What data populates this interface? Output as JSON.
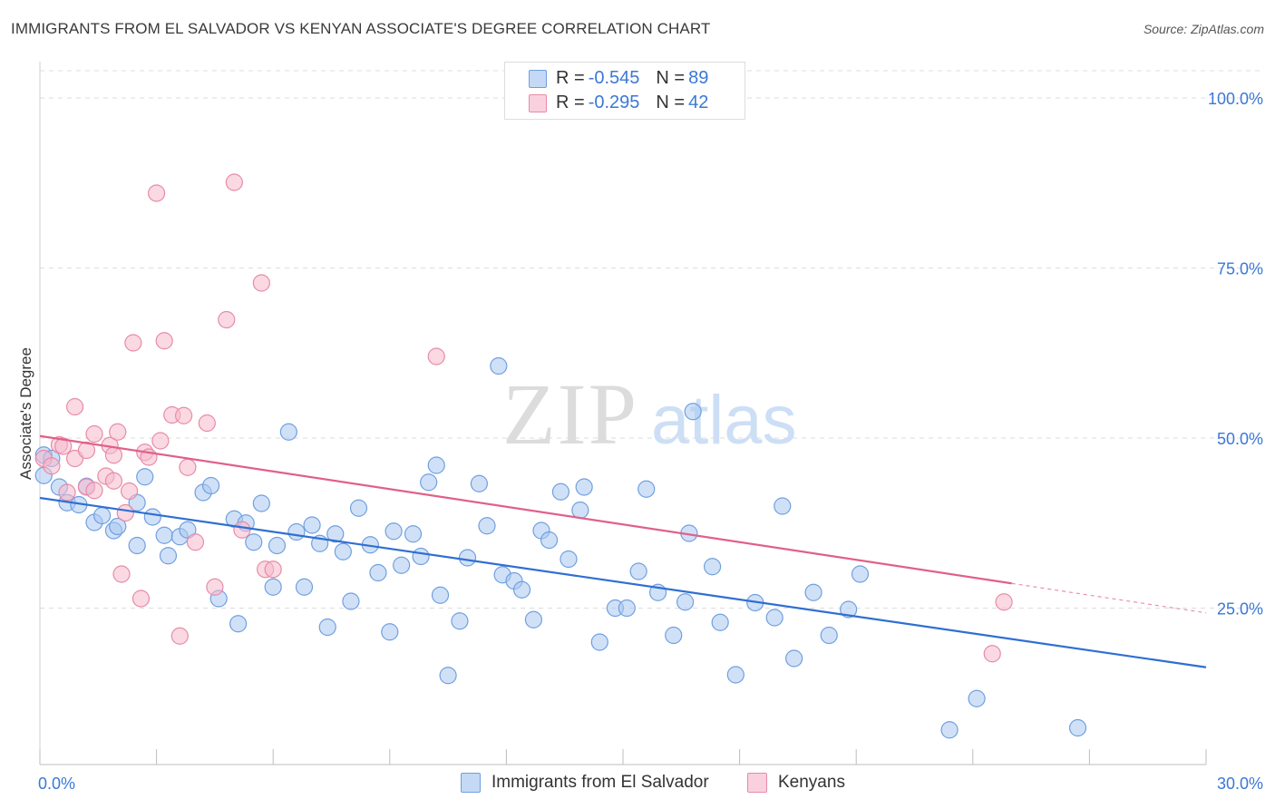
{
  "header": {
    "title": "IMMIGRANTS FROM EL SALVADOR VS KENYAN ASSOCIATE'S DEGREE CORRELATION CHART",
    "source": "Source: ZipAtlas.com"
  },
  "watermark": {
    "zip": "ZIP",
    "atlas": "atlas"
  },
  "legend_top": {
    "rows": [
      {
        "r_label": "R = ",
        "r_value": "-0.545",
        "n_label": "N = ",
        "n_value": "89"
      },
      {
        "r_label": "R = ",
        "r_value": "-0.295",
        "n_label": "N = ",
        "n_value": "42"
      }
    ]
  },
  "legend_bottom": {
    "items": [
      {
        "label": "Immigrants from El Salvador"
      },
      {
        "label": "Kenyans"
      }
    ]
  },
  "colors": {
    "blue_fill": "#a9c8f0",
    "blue_stroke": "#6f9fe0",
    "blue_line": "#2f6fd1",
    "pink_fill": "#f6b9cc",
    "pink_stroke": "#e88aa8",
    "pink_line": "#e0608a",
    "tick_label": "#3b78d6",
    "grid": "#dddddd"
  },
  "chart_data": {
    "type": "scatter",
    "title": "IMMIGRANTS FROM EL SALVADOR VS KENYAN ASSOCIATE'S DEGREE CORRELATION CHART",
    "xlabel": "",
    "ylabel": "Associate's Degree",
    "xlim": [
      0,
      30
    ],
    "ylim": [
      2,
      104
    ],
    "x_ticks": [
      0,
      30
    ],
    "x_tick_labels": [
      "0.0%",
      "30.0%"
    ],
    "y_ticks": [
      25,
      50,
      75,
      100
    ],
    "y_tick_labels": [
      "25.0%",
      "50.0%",
      "75.0%",
      "100.0%"
    ],
    "grid": true,
    "legend_position": "top-center",
    "series": [
      {
        "name": "Immigrants from El Salvador",
        "color": "blue",
        "trend": {
          "x": [
            0,
            30
          ],
          "y": [
            41.2,
            16.3
          ],
          "dashed_from": null
        },
        "points": [
          [
            0.1,
            47.5
          ],
          [
            0.1,
            44.5
          ],
          [
            0.5,
            42.8
          ],
          [
            0.7,
            40.5
          ],
          [
            1.0,
            40.2
          ],
          [
            1.2,
            42.9
          ],
          [
            1.4,
            37.6
          ],
          [
            1.6,
            38.6
          ],
          [
            1.9,
            36.4
          ],
          [
            2.0,
            37.0
          ],
          [
            2.5,
            40.5
          ],
          [
            2.5,
            34.2
          ],
          [
            2.7,
            44.3
          ],
          [
            2.9,
            38.4
          ],
          [
            3.2,
            35.7
          ],
          [
            3.3,
            32.7
          ],
          [
            3.6,
            35.5
          ],
          [
            3.8,
            36.5
          ],
          [
            4.2,
            42.0
          ],
          [
            4.4,
            43.0
          ],
          [
            4.6,
            26.4
          ],
          [
            5.0,
            38.1
          ],
          [
            5.1,
            22.7
          ],
          [
            5.3,
            37.5
          ],
          [
            5.5,
            34.7
          ],
          [
            5.7,
            40.4
          ],
          [
            6.0,
            28.1
          ],
          [
            6.1,
            34.2
          ],
          [
            6.4,
            50.9
          ],
          [
            6.6,
            36.2
          ],
          [
            6.8,
            28.1
          ],
          [
            7.0,
            37.2
          ],
          [
            7.2,
            34.5
          ],
          [
            7.4,
            22.2
          ],
          [
            7.6,
            35.9
          ],
          [
            7.8,
            33.3
          ],
          [
            8.0,
            26.0
          ],
          [
            8.2,
            39.7
          ],
          [
            8.5,
            34.3
          ],
          [
            8.7,
            30.2
          ],
          [
            9.0,
            21.5
          ],
          [
            9.1,
            36.3
          ],
          [
            9.3,
            31.3
          ],
          [
            9.6,
            35.9
          ],
          [
            9.8,
            32.6
          ],
          [
            10.0,
            43.5
          ],
          [
            10.2,
            46.0
          ],
          [
            10.3,
            26.9
          ],
          [
            10.5,
            15.1
          ],
          [
            10.8,
            23.1
          ],
          [
            11.0,
            32.4
          ],
          [
            11.3,
            43.3
          ],
          [
            11.5,
            37.1
          ],
          [
            11.8,
            60.6
          ],
          [
            11.9,
            29.9
          ],
          [
            12.2,
            29.0
          ],
          [
            12.4,
            27.7
          ],
          [
            12.7,
            23.3
          ],
          [
            12.9,
            36.4
          ],
          [
            13.1,
            35.0
          ],
          [
            13.4,
            42.1
          ],
          [
            13.6,
            32.2
          ],
          [
            13.9,
            39.4
          ],
          [
            14.0,
            42.8
          ],
          [
            14.4,
            20.0
          ],
          [
            14.8,
            25.0
          ],
          [
            15.1,
            25.0
          ],
          [
            15.4,
            30.4
          ],
          [
            15.6,
            42.5
          ],
          [
            15.9,
            27.3
          ],
          [
            16.3,
            21.0
          ],
          [
            16.6,
            25.9
          ],
          [
            16.7,
            36.0
          ],
          [
            16.8,
            53.9
          ],
          [
            17.3,
            31.1
          ],
          [
            17.5,
            22.9
          ],
          [
            17.9,
            15.2
          ],
          [
            18.4,
            25.8
          ],
          [
            18.9,
            23.6
          ],
          [
            19.1,
            40.0
          ],
          [
            19.4,
            17.6
          ],
          [
            19.9,
            27.3
          ],
          [
            20.3,
            21.0
          ],
          [
            20.8,
            24.8
          ],
          [
            21.1,
            30.0
          ],
          [
            23.4,
            7.1
          ],
          [
            24.1,
            11.7
          ],
          [
            26.7,
            7.4
          ],
          [
            0.3,
            47.0
          ]
        ]
      },
      {
        "name": "Kenyans",
        "color": "pink",
        "trend": {
          "x": [
            0,
            30
          ],
          "y": [
            50.3,
            24.3
          ],
          "dashed_from": 25.0
        },
        "points": [
          [
            0.1,
            47.0
          ],
          [
            0.3,
            45.9
          ],
          [
            0.5,
            49.0
          ],
          [
            0.6,
            48.8
          ],
          [
            0.7,
            42.0
          ],
          [
            0.9,
            47.0
          ],
          [
            0.9,
            54.6
          ],
          [
            1.2,
            48.2
          ],
          [
            1.2,
            42.8
          ],
          [
            1.4,
            42.3
          ],
          [
            1.4,
            50.6
          ],
          [
            1.7,
            44.4
          ],
          [
            1.8,
            48.9
          ],
          [
            1.9,
            47.5
          ],
          [
            2.0,
            50.9
          ],
          [
            2.1,
            30.0
          ],
          [
            2.2,
            39.0
          ],
          [
            2.3,
            42.2
          ],
          [
            2.4,
            64.0
          ],
          [
            2.6,
            26.4
          ],
          [
            2.7,
            47.9
          ],
          [
            2.8,
            47.2
          ],
          [
            3.0,
            86.0
          ],
          [
            3.1,
            49.6
          ],
          [
            3.2,
            64.3
          ],
          [
            3.4,
            53.4
          ],
          [
            3.6,
            20.9
          ],
          [
            3.7,
            53.3
          ],
          [
            3.8,
            45.7
          ],
          [
            4.0,
            34.7
          ],
          [
            4.3,
            52.2
          ],
          [
            4.5,
            28.1
          ],
          [
            4.8,
            67.4
          ],
          [
            5.0,
            87.6
          ],
          [
            5.2,
            36.5
          ],
          [
            5.7,
            72.8
          ],
          [
            5.8,
            30.7
          ],
          [
            6.0,
            30.7
          ],
          [
            10.2,
            62.0
          ],
          [
            24.5,
            18.3
          ],
          [
            24.8,
            25.9
          ],
          [
            1.9,
            43.7
          ]
        ]
      }
    ]
  }
}
